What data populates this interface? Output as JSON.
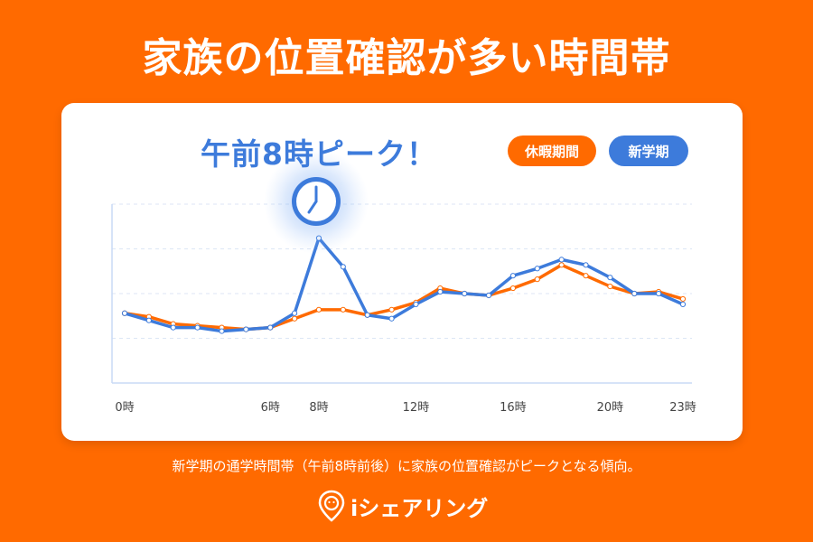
{
  "page": {
    "title": "家族の位置確認が多い時間帯",
    "peak_label": "午前8時ピーク！",
    "caption": "新学期の通学時間帯（午前8時前後）に家族の位置確認がピークとなる傾向。",
    "brand": "iシェアリング"
  },
  "legend": {
    "holiday": "休暇期間",
    "new_term": "新学期"
  },
  "icons": {
    "peak_marker": "clock-icon",
    "brand_logo": "location-pin-icon"
  },
  "colors": {
    "background": "#FF6A00",
    "holiday": "#FF6A00",
    "new_term": "#3D7BDB"
  },
  "chart_data": {
    "type": "line",
    "x": [
      0,
      1,
      2,
      3,
      4,
      5,
      6,
      7,
      8,
      9,
      10,
      11,
      12,
      13,
      14,
      15,
      16,
      17,
      18,
      19,
      20,
      21,
      22,
      23
    ],
    "xtick_values": [
      0,
      6,
      8,
      12,
      16,
      20,
      23
    ],
    "xtick_labels": [
      "0時",
      "6時",
      "8時",
      "12時",
      "16時",
      "20時",
      "23時"
    ],
    "ylim": [
      0,
      100
    ],
    "yticks_labeled": false,
    "grid": "horizontal-dashed",
    "legend_position": "top-right",
    "series": [
      {
        "name": "休暇期間",
        "color": "#FF6A00",
        "values": [
          39,
          37,
          33,
          32,
          31,
          30,
          31,
          36,
          41,
          41,
          38,
          41,
          45,
          53,
          50,
          49,
          53,
          58,
          66,
          60,
          54,
          50,
          51,
          47
        ]
      },
      {
        "name": "新学期",
        "color": "#3D7BDB",
        "values": [
          39,
          35,
          31,
          31,
          29,
          30,
          31,
          39,
          81,
          65,
          38,
          36,
          44,
          51,
          50,
          49,
          60,
          64,
          69,
          66,
          59,
          50,
          50,
          44
        ]
      }
    ]
  }
}
